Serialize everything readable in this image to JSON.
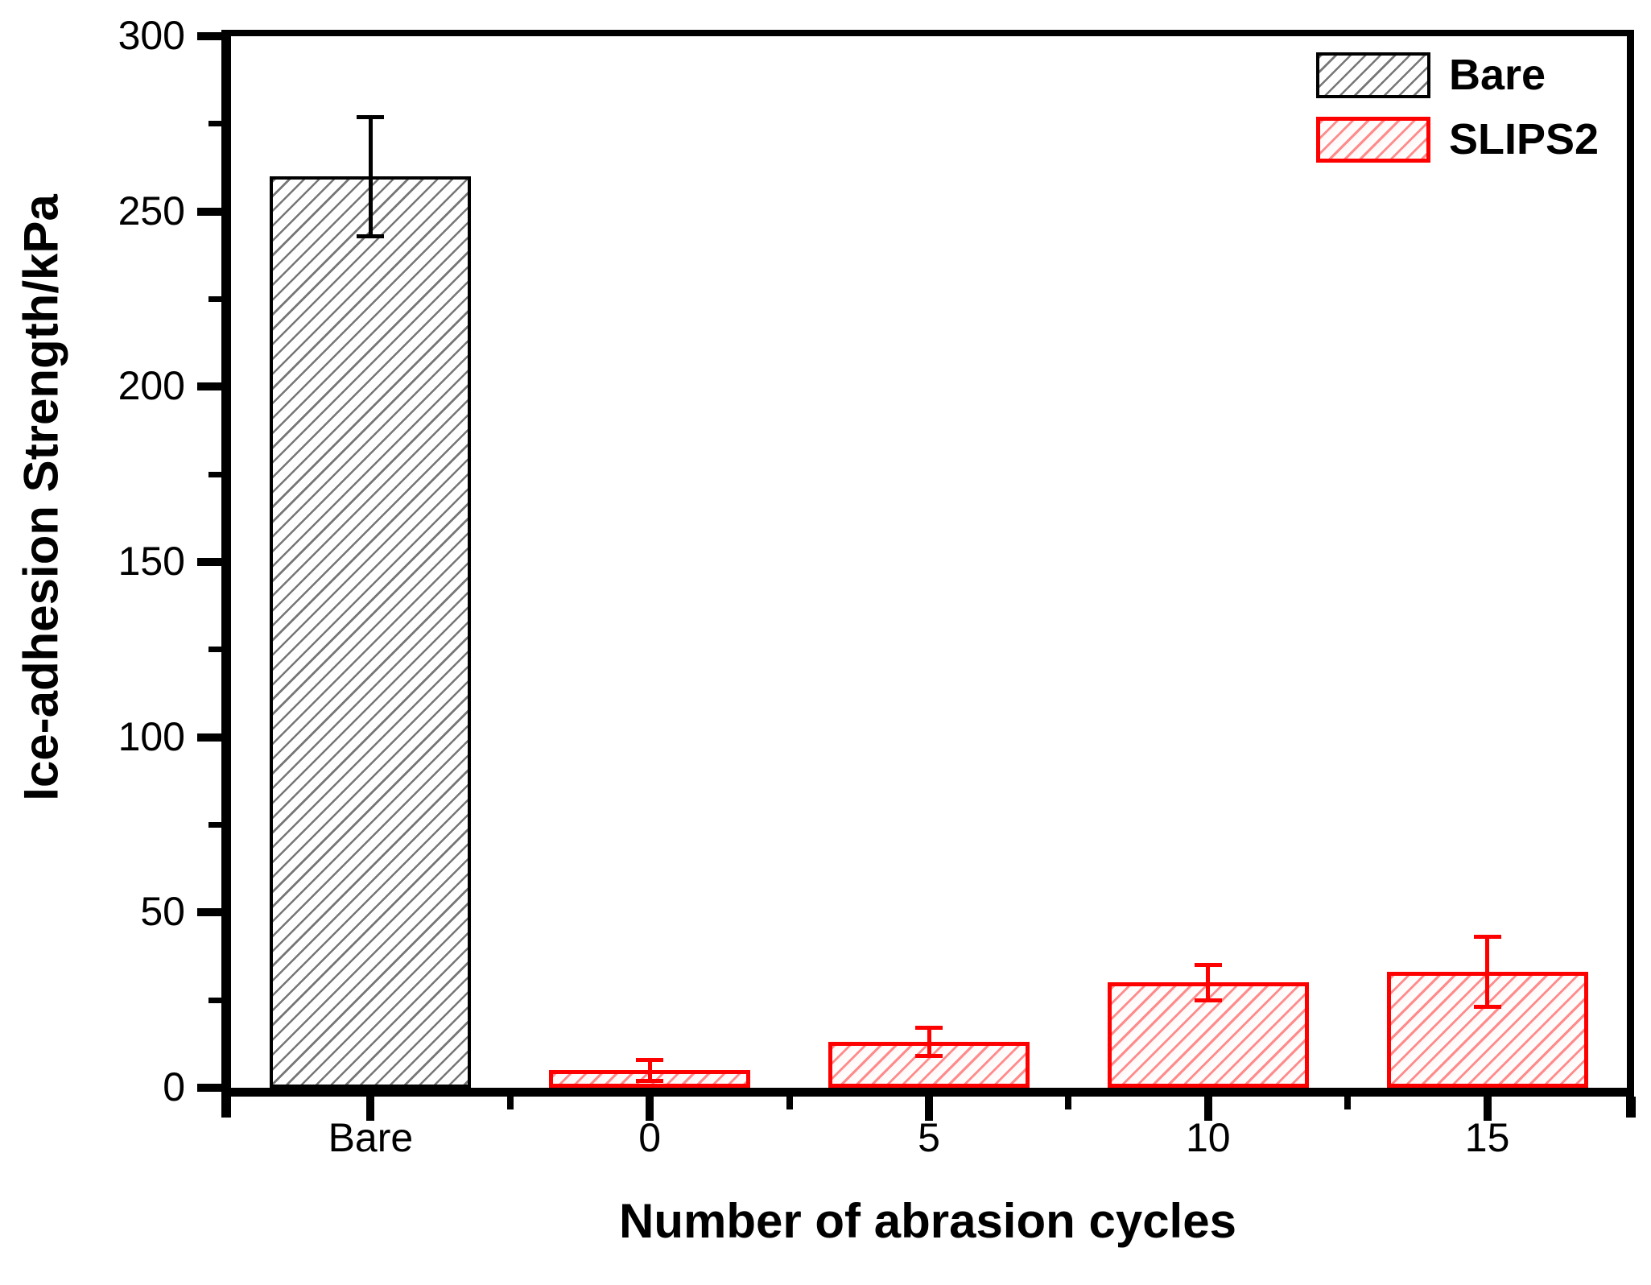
{
  "chart_data": {
    "type": "bar",
    "title": "",
    "xlabel": "Number of abrasion cycles",
    "ylabel": "Ice-adhesion Strength/kPa",
    "categories": [
      "Bare",
      "0",
      "5",
      "10",
      "15"
    ],
    "series": [
      {
        "name": "Bare",
        "color": "#000000",
        "hatch": "diagonal",
        "values": [
          260,
          null,
          null,
          null,
          null
        ],
        "errors": [
          17,
          null,
          null,
          null,
          null
        ]
      },
      {
        "name": "SLIPS2",
        "color": "#fe0000",
        "hatch": "diagonal",
        "values": [
          null,
          5,
          13,
          30,
          33
        ],
        "errors": [
          null,
          3,
          4,
          5,
          10
        ]
      }
    ],
    "ylim": [
      0,
      300
    ],
    "yticks": [
      0,
      50,
      100,
      150,
      200,
      250,
      300
    ],
    "y_minor_tick_step": 25,
    "x_minor_ticks_between_categories": true,
    "grid": false,
    "legend_position": "top-right",
    "legend": [
      "Bare",
      "SLIPS2"
    ]
  },
  "colors": {
    "background": "#ffffff",
    "axis": "#000000",
    "text": "#000000",
    "bare_series": "#000000",
    "slips2_series": "#fe0000"
  }
}
